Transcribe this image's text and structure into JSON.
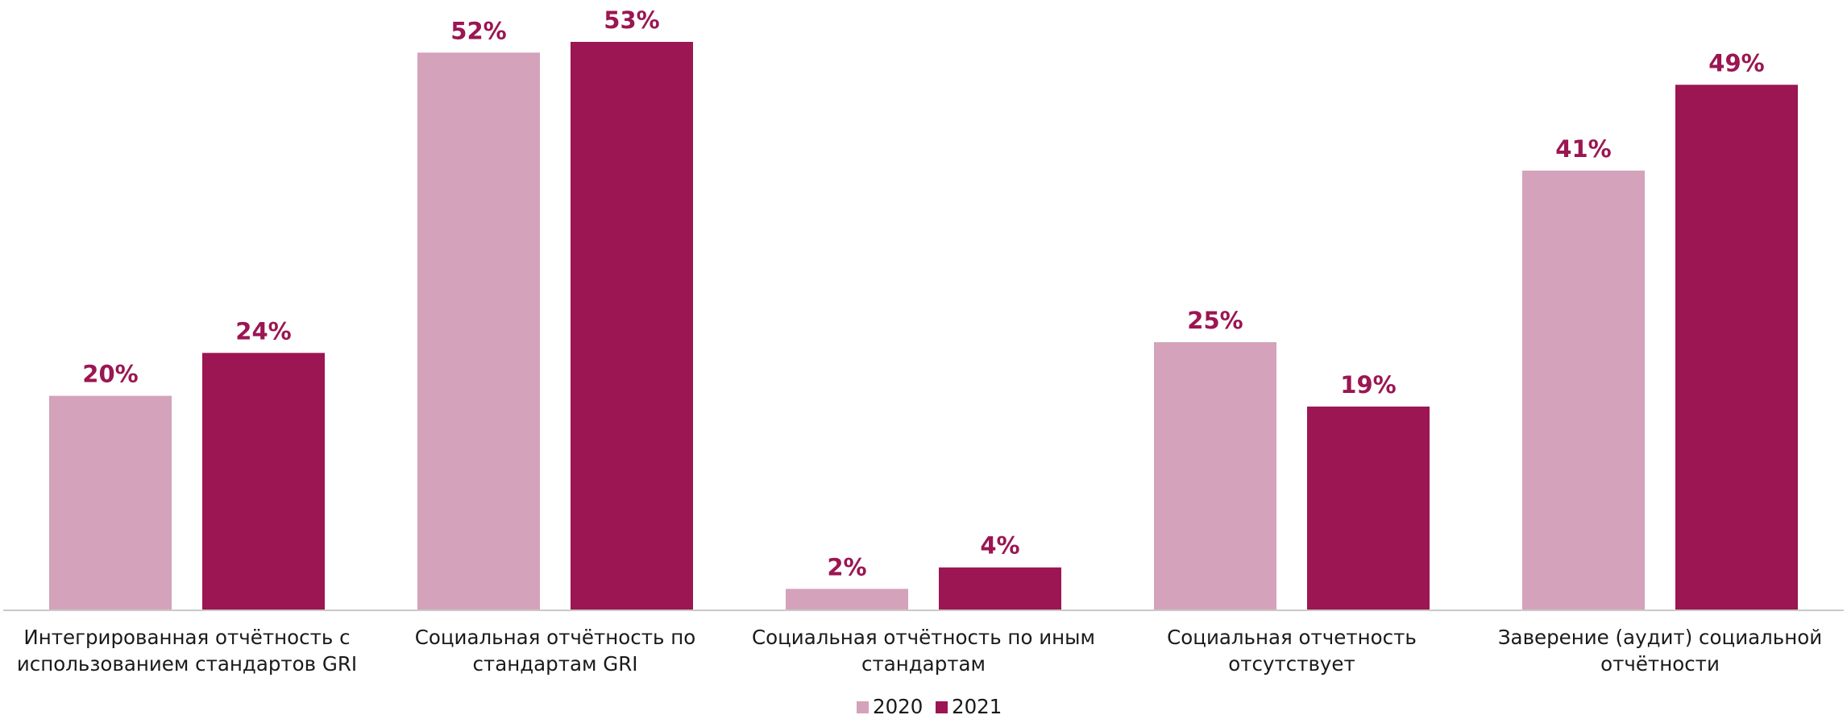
{
  "chart_data": {
    "type": "bar",
    "categories": [
      [
        "Интегрированная отчётность с",
        "использованием стандартов GRI"
      ],
      [
        "Социальная отчётность по",
        "стандартам GRI"
      ],
      [
        "Социальная отчётность по иным",
        "стандартам"
      ],
      [
        "Социальная отчетность",
        "отсутствует"
      ],
      [
        "Заверение (аудит) социальной",
        "отчётности"
      ]
    ],
    "series": [
      {
        "name": "2020",
        "color": "#d4a2ba",
        "values": [
          20,
          52,
          2,
          25,
          41
        ],
        "labels": [
          "20%",
          "52%",
          "2%",
          "25%",
          "41%"
        ]
      },
      {
        "name": "2021",
        "color": "#9b1652",
        "values": [
          24,
          53,
          4,
          19,
          49
        ],
        "labels": [
          "24%",
          "53%",
          "4%",
          "19%",
          "49%"
        ]
      }
    ],
    "label_color": "#9b1652",
    "ylim": [
      0,
      53
    ],
    "legend_position": "bottom-center",
    "grid": false
  }
}
